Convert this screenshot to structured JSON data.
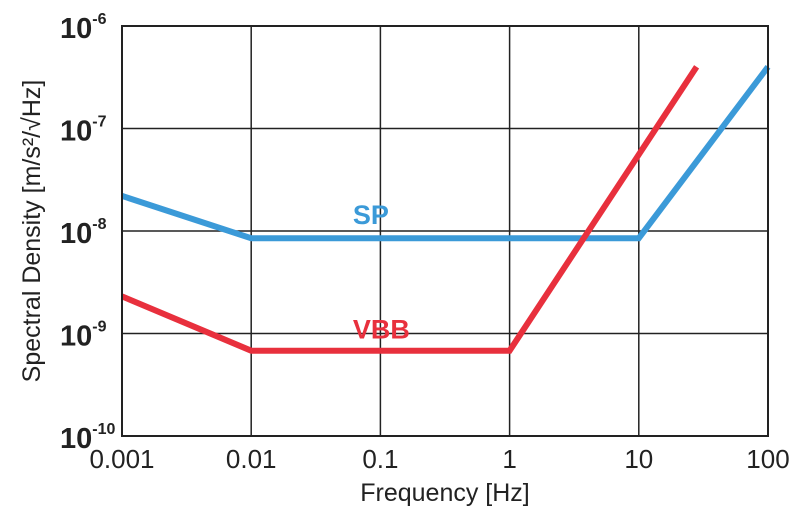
{
  "chart_data": {
    "type": "line",
    "xlabel": "Frequency [Hz]",
    "ylabel": "Spectral Density [m/s²/√Hz]",
    "xscale": "log",
    "yscale": "log",
    "xlim": [
      0.001,
      100
    ],
    "ylim": [
      1e-10,
      1e-06
    ],
    "grid": true,
    "x_ticks": [
      {
        "value": 0.001,
        "label": "0.001"
      },
      {
        "value": 0.01,
        "label": "0.01"
      },
      {
        "value": 0.1,
        "label": "0.1"
      },
      {
        "value": 1,
        "label": "1"
      },
      {
        "value": 10,
        "label": "10"
      },
      {
        "value": 100,
        "label": "100"
      }
    ],
    "y_ticks": [
      {
        "value": 1e-10,
        "base": "10",
        "exp": "-10"
      },
      {
        "value": 1e-09,
        "base": "10",
        "exp": "-9"
      },
      {
        "value": 1e-08,
        "base": "10",
        "exp": "-8"
      },
      {
        "value": 1e-07,
        "base": "10",
        "exp": "-7"
      },
      {
        "value": 1e-06,
        "base": "10",
        "exp": "-6"
      }
    ],
    "series": [
      {
        "name": "SP",
        "color": "#3b9ad8",
        "points": [
          [
            0.001,
            2.2e-08
          ],
          [
            0.01,
            8.5e-09
          ],
          [
            10,
            8.5e-09
          ],
          [
            100,
            4e-07
          ]
        ]
      },
      {
        "name": "VBB",
        "color": "#e8303d",
        "points": [
          [
            0.001,
            2.3e-09
          ],
          [
            0.01,
            6.8e-10
          ],
          [
            1,
            6.8e-10
          ],
          [
            28,
            4e-07
          ]
        ]
      }
    ]
  }
}
